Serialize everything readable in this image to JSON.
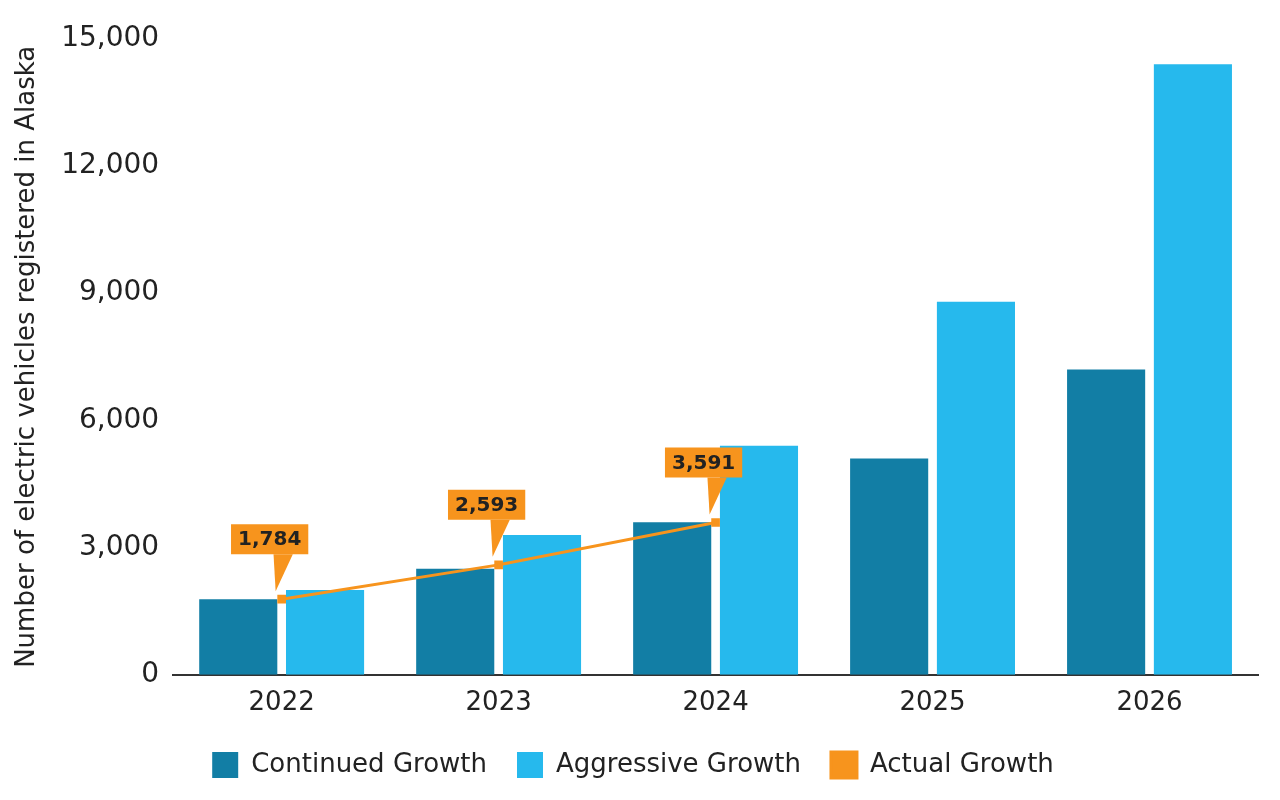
{
  "chart_data": {
    "type": "bar",
    "ylabel": "Number of electric vehicles registered in Alaska",
    "categories": [
      "2022",
      "2023",
      "2024",
      "2025",
      "2026"
    ],
    "series": [
      {
        "name": "Continued Growth",
        "color": "#127ea5",
        "values": [
          1780,
          2500,
          3600,
          5100,
          7200
        ]
      },
      {
        "name": "Aggressive Growth",
        "color": "#26b9ed",
        "values": [
          2000,
          3300,
          5400,
          8800,
          14400
        ]
      },
      {
        "name": "Actual Growth",
        "type": "line",
        "color": "#f7941d",
        "marker": "square",
        "values": [
          1784,
          2593,
          3591,
          null,
          null
        ],
        "value_labels": [
          "1,784",
          "2,593",
          "3,591",
          null,
          null
        ]
      }
    ],
    "ylim": [
      0,
      15000
    ],
    "yticks": [
      {
        "value": 0,
        "label": "0"
      },
      {
        "value": 3000,
        "label": "3,000"
      },
      {
        "value": 6000,
        "label": "6,000"
      },
      {
        "value": 9000,
        "label": "9,000"
      },
      {
        "value": 12000,
        "label": "12,000"
      },
      {
        "value": 15000,
        "label": "15,000"
      }
    ],
    "grid": false,
    "legend": "bottom"
  }
}
